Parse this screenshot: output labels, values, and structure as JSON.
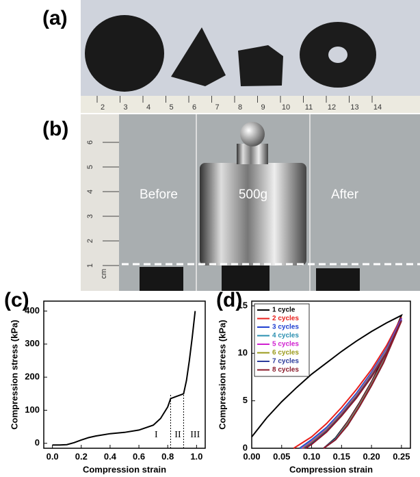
{
  "panels": {
    "a": {
      "label": "(a)",
      "ruler": [
        "2",
        "3",
        "4",
        "5",
        "6",
        "7",
        "8",
        "9",
        "10",
        "11",
        "12",
        "13",
        "14"
      ]
    },
    "b": {
      "label": "(b)",
      "ruler": [
        "6",
        "5",
        "4",
        "3",
        "2",
        "1"
      ],
      "unit": "cm",
      "captions": [
        "Before",
        "500g",
        "After"
      ]
    }
  },
  "chart_data": [
    {
      "type": "line",
      "label": "(c)",
      "xlabel": "Compression strain",
      "ylabel": "Compression stress (kPa)",
      "xlim": [
        -0.06,
        1.06
      ],
      "ylim": [
        -15,
        430
      ],
      "xticks": [
        {
          "value": 0,
          "label": "0.0"
        },
        {
          "value": 0.2,
          "label": "0.2"
        },
        {
          "value": 0.4,
          "label": "0.4"
        },
        {
          "value": 0.6,
          "label": "0.6"
        },
        {
          "value": 0.8,
          "label": "0.8"
        },
        {
          "value": 1,
          "label": "1.0"
        }
      ],
      "yticks": [
        0,
        100,
        200,
        300,
        400
      ],
      "series": [
        {
          "color": "#000000",
          "x": [
            0,
            0.05,
            0.1,
            0.15,
            0.2,
            0.25,
            0.3,
            0.4,
            0.5,
            0.6,
            0.7,
            0.75,
            0.8,
            0.82,
            0.85,
            0.9,
            0.91,
            0.93,
            0.95,
            0.97,
            0.99
          ],
          "values": [
            -5,
            -5,
            -4,
            2,
            10,
            17,
            22,
            29,
            33,
            40,
            55,
            75,
            110,
            135,
            140,
            148,
            150,
            190,
            250,
            320,
            400
          ]
        }
      ],
      "vlines": [
        0.82,
        0.91
      ],
      "annotations": [
        "I",
        "II",
        "III"
      ]
    },
    {
      "type": "line",
      "label": "(d)",
      "xlabel": "Compression strain",
      "ylabel": "Compression stress (kPa)",
      "xlim": [
        0,
        0.265
      ],
      "ylim": [
        0,
        15.5
      ],
      "legend": "upper-left",
      "xticks": [
        {
          "value": 0,
          "label": "0.00"
        },
        {
          "value": 0.05,
          "label": "0.05"
        },
        {
          "value": 0.1,
          "label": "0.10"
        },
        {
          "value": 0.15,
          "label": "0.15"
        },
        {
          "value": 0.2,
          "label": "0.20"
        },
        {
          "value": 0.25,
          "label": "0.25"
        }
      ],
      "yticks": [
        0,
        5,
        10,
        15
      ],
      "series": [
        {
          "name": "1 cycle",
          "color": "#000000",
          "x": [
            0,
            0.025,
            0.05,
            0.075,
            0.1,
            0.125,
            0.15,
            0.175,
            0.2,
            0.225,
            0.25,
            0.22,
            0.2,
            0.18,
            0.16,
            0.14,
            0.12
          ],
          "values": [
            1.2,
            3.2,
            4.9,
            6.4,
            7.8,
            9.0,
            10.2,
            11.3,
            12.3,
            13.2,
            14,
            9.5,
            7,
            4.8,
            2.8,
            1.1,
            0
          ]
        },
        {
          "name": "2 cycles",
          "color": "#e8201c",
          "x": [
            0.07,
            0.1,
            0.125,
            0.15,
            0.175,
            0.2,
            0.225,
            0.25,
            0.22,
            0.2,
            0.18,
            0.16,
            0.14,
            0.12
          ],
          "values": [
            0,
            1.2,
            2.6,
            4.3,
            6.2,
            8.3,
            10.8,
            13.8,
            9.3,
            6.9,
            4.7,
            2.7,
            1.0,
            0
          ]
        },
        {
          "name": "3 cycles",
          "color": "#1f3fd0",
          "x": [
            0.08,
            0.1,
            0.125,
            0.15,
            0.175,
            0.2,
            0.225,
            0.25,
            0.22,
            0.2,
            0.18,
            0.16,
            0.14,
            0.12
          ],
          "values": [
            0,
            0.9,
            2.2,
            3.9,
            5.8,
            8.0,
            10.5,
            13.7,
            9.2,
            6.8,
            4.6,
            2.6,
            1.0,
            0
          ]
        },
        {
          "name": "4 cycles",
          "color": "#2a8fb0",
          "x": [
            0.082,
            0.1,
            0.125,
            0.15,
            0.175,
            0.2,
            0.225,
            0.25,
            0.22,
            0.2,
            0.18,
            0.16,
            0.14,
            0.12
          ],
          "values": [
            0,
            0.8,
            2.1,
            3.8,
            5.7,
            7.9,
            10.4,
            13.6,
            9.2,
            6.8,
            4.6,
            2.6,
            1.0,
            0
          ]
        },
        {
          "name": "5 cycles",
          "color": "#d020d0",
          "x": [
            0.084,
            0.1,
            0.125,
            0.15,
            0.175,
            0.2,
            0.225,
            0.25,
            0.22,
            0.2,
            0.18,
            0.16,
            0.14,
            0.12
          ],
          "values": [
            0,
            0.7,
            2.0,
            3.7,
            5.6,
            7.8,
            10.3,
            13.6,
            9.1,
            6.7,
            4.5,
            2.5,
            0.9,
            0
          ]
        },
        {
          "name": "6 cycles",
          "color": "#9a9a1a",
          "x": [
            0.086,
            0.1,
            0.125,
            0.15,
            0.175,
            0.2,
            0.225,
            0.25,
            0.22,
            0.2,
            0.18,
            0.16,
            0.14,
            0.12
          ],
          "values": [
            0,
            0.6,
            1.9,
            3.6,
            5.5,
            7.7,
            10.2,
            13.5,
            9.1,
            6.7,
            4.5,
            2.5,
            0.9,
            0
          ]
        },
        {
          "name": "7 cycles",
          "color": "#2a3a9a",
          "x": [
            0.088,
            0.1,
            0.125,
            0.15,
            0.175,
            0.2,
            0.225,
            0.25,
            0.22,
            0.2,
            0.18,
            0.16,
            0.14,
            0.12
          ],
          "values": [
            0,
            0.5,
            1.8,
            3.5,
            5.4,
            7.6,
            10.1,
            13.5,
            9.0,
            6.6,
            4.4,
            2.4,
            0.9,
            0
          ]
        },
        {
          "name": "8 cycles",
          "color": "#8a1a2a",
          "x": [
            0.09,
            0.1,
            0.125,
            0.15,
            0.175,
            0.2,
            0.225,
            0.25,
            0.22,
            0.2,
            0.18,
            0.16,
            0.14,
            0.12
          ],
          "values": [
            0,
            0.4,
            1.7,
            3.4,
            5.3,
            7.5,
            10.0,
            13.4,
            9.0,
            6.6,
            4.4,
            2.4,
            0.9,
            0
          ]
        }
      ]
    }
  ]
}
